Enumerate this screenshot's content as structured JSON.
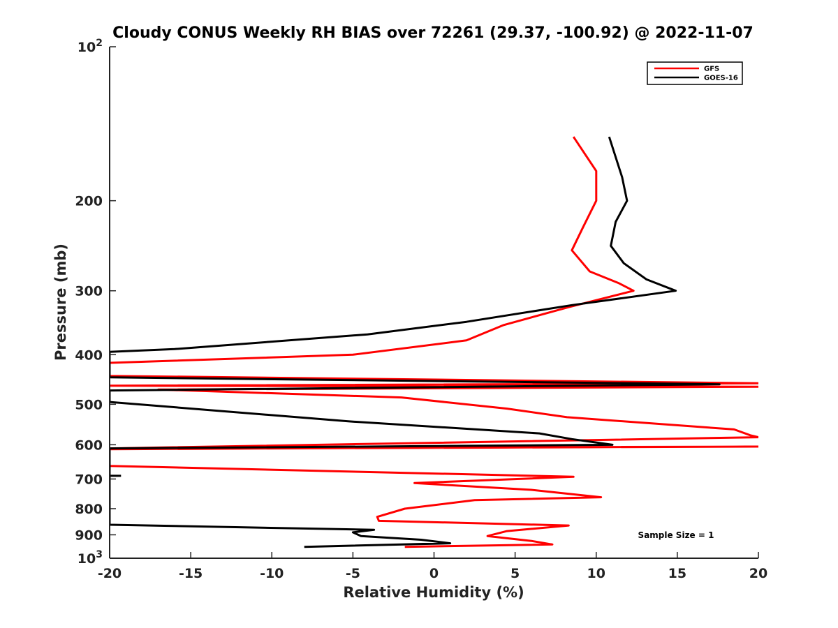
{
  "chart_data": {
    "type": "line",
    "title": "Cloudy CONUS Weekly RH BIAS over 72261 (29.37, -100.92) @ 2022-11-07",
    "xlabel": "Relative Humidity (%)",
    "ylabel": "Pressure (mb)",
    "xlim": [
      -20,
      20
    ],
    "ylim": [
      100,
      1000
    ],
    "y_scale": "log",
    "y_reversed": true,
    "x_ticks": [
      -20,
      -15,
      -10,
      -5,
      0,
      5,
      10,
      15,
      20
    ],
    "x_tick_labels": [
      "-20",
      "-15",
      "-10",
      "-5",
      "0",
      "5",
      "10",
      "15",
      "20"
    ],
    "y_ticks": [
      200,
      300,
      400,
      500,
      600,
      700,
      800,
      900
    ],
    "y_tick_labels": [
      "200",
      "300",
      "400",
      "500",
      "600",
      "700",
      "800",
      "900"
    ],
    "y_extreme_labels": [
      {
        "value": 100,
        "base": "10",
        "exp": "2"
      },
      {
        "value": 1000,
        "base": "10",
        "exp": "3"
      }
    ],
    "grid": false,
    "legend_position": "top-right",
    "annotation": "Sample Size = 1",
    "series": [
      {
        "name": "GFS",
        "color": "#ff0000",
        "points": [
          [
            8.6,
            150
          ],
          [
            10.0,
            175
          ],
          [
            10.0,
            200
          ],
          [
            9.2,
            225
          ],
          [
            8.5,
            250
          ],
          [
            9.6,
            275
          ],
          [
            11.4,
            290
          ],
          [
            12.3,
            300
          ],
          [
            8.3,
            323
          ],
          [
            4.3,
            350
          ],
          [
            2.0,
            375
          ],
          [
            -5.0,
            400
          ],
          [
            -20.0,
            415
          ],
          [
            -20.0,
            440
          ],
          [
            20.0,
            455
          ],
          [
            -20.0,
            460
          ],
          [
            20.0,
            462
          ],
          [
            -17.0,
            468
          ],
          [
            -2.0,
            485
          ],
          [
            4.5,
            510
          ],
          [
            8.2,
            530
          ],
          [
            18.5,
            560
          ],
          [
            19.5,
            575
          ],
          [
            20.0,
            580
          ],
          [
            -20.0,
            610
          ],
          [
            20.0,
            605
          ],
          [
            -20.0,
            612
          ],
          [
            -20.0,
            660
          ],
          [
            8.6,
            693
          ],
          [
            -1.2,
            713
          ],
          [
            6.0,
            735
          ],
          [
            10.3,
            760
          ],
          [
            2.5,
            770
          ],
          [
            -1.8,
            800
          ],
          [
            -3.5,
            830
          ],
          [
            -3.4,
            845
          ],
          [
            8.3,
            863
          ],
          [
            4.5,
            885
          ],
          [
            3.3,
            905
          ],
          [
            6.0,
            925
          ],
          [
            7.3,
            940
          ],
          [
            -1.8,
            950
          ]
        ]
      },
      {
        "name": "GOES-16",
        "color": "#000000",
        "points": [
          [
            10.8,
            150
          ],
          [
            11.6,
            180
          ],
          [
            11.9,
            200
          ],
          [
            11.2,
            220
          ],
          [
            10.9,
            245
          ],
          [
            11.7,
            265
          ],
          [
            13.1,
            285
          ],
          [
            14.9,
            300
          ],
          [
            8.5,
            320
          ],
          [
            2.0,
            345
          ],
          [
            -4.1,
            365
          ],
          [
            -16.0,
            390
          ],
          [
            -20.0,
            395
          ],
          [
            -20.0,
            440
          ],
          [
            -20.0,
            443
          ],
          [
            17.6,
            457
          ],
          [
            -20.0,
            470
          ],
          [
            -20.0,
            495
          ],
          [
            -5.3,
            540
          ],
          [
            6.5,
            570
          ],
          [
            8.5,
            585
          ],
          [
            11.0,
            600
          ],
          [
            -20.0,
            610
          ],
          [
            -20.0,
            860
          ],
          [
            -3.7,
            880
          ],
          [
            -5.0,
            890
          ],
          [
            -4.5,
            905
          ],
          [
            -0.8,
            920
          ],
          [
            1.0,
            935
          ],
          [
            -8.0,
            950
          ]
        ]
      },
      {
        "name": "",
        "color": "#000000",
        "points": [
          [
            -20.0,
            690
          ],
          [
            -19.3,
            690
          ]
        ]
      }
    ]
  }
}
